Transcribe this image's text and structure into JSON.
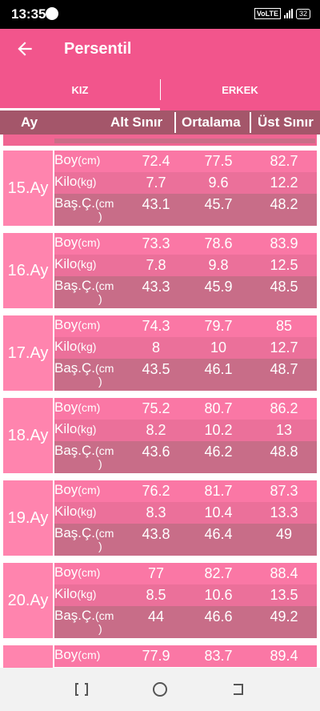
{
  "status_bar": {
    "time": "13:35",
    "network": "VoLTE",
    "battery": "32"
  },
  "app_bar": {
    "title": "Persentil"
  },
  "tabs": [
    {
      "label": "KIZ"
    },
    {
      "label": "ERKEK"
    }
  ],
  "columns": {
    "ay": "Ay",
    "alt": "Alt Sınır",
    "ortalama": "Ortalama",
    "ust": "Üst Sınır"
  },
  "row_labels": {
    "boy": "Boy",
    "boy_unit": "(cm)",
    "kilo": "Kilo",
    "kilo_unit": "(kg)",
    "bas": "Baş.Ç.",
    "bas_unit": "(cm",
    "bas_unit_tail": ")"
  },
  "months": [
    {
      "label": "15.Ay",
      "boy": [
        "72.4",
        "77.5",
        "82.7"
      ],
      "kilo": [
        "7.7",
        "9.6",
        "12.2"
      ],
      "bas": [
        "43.1",
        "45.7",
        "48.2"
      ]
    },
    {
      "label": "16.Ay",
      "boy": [
        "73.3",
        "78.6",
        "83.9"
      ],
      "kilo": [
        "7.8",
        "9.8",
        "12.5"
      ],
      "bas": [
        "43.3",
        "45.9",
        "48.5"
      ]
    },
    {
      "label": "17.Ay",
      "boy": [
        "74.3",
        "79.7",
        "85"
      ],
      "kilo": [
        "8",
        "10",
        "12.7"
      ],
      "bas": [
        "43.5",
        "46.1",
        "48.7"
      ]
    },
    {
      "label": "18.Ay",
      "boy": [
        "75.2",
        "80.7",
        "86.2"
      ],
      "kilo": [
        "8.2",
        "10.2",
        "13"
      ],
      "bas": [
        "43.6",
        "46.2",
        "48.8"
      ]
    },
    {
      "label": "19.Ay",
      "boy": [
        "76.2",
        "81.7",
        "87.3"
      ],
      "kilo": [
        "8.3",
        "10.4",
        "13.3"
      ],
      "bas": [
        "43.8",
        "46.4",
        "49"
      ]
    },
    {
      "label": "20.Ay",
      "boy": [
        "77",
        "82.7",
        "88.4"
      ],
      "kilo": [
        "8.5",
        "10.6",
        "13.5"
      ],
      "bas": [
        "44",
        "46.6",
        "49.2"
      ]
    },
    {
      "label": "",
      "boy": [
        "77.9",
        "83.7",
        "89.4"
      ],
      "kilo": [],
      "bas": []
    }
  ],
  "colors": {
    "primary": "#F2558C",
    "header": "#A4566A",
    "ay_cell": "#FF84AE",
    "row_boy": "#FA77A5",
    "row_kilo": "#EB709A",
    "row_bas": "#C86D88"
  },
  "icons": {
    "back": "back-arrow-icon",
    "nav_recent": "recent-apps-icon",
    "nav_home": "home-icon",
    "nav_back": "back-nav-icon"
  }
}
